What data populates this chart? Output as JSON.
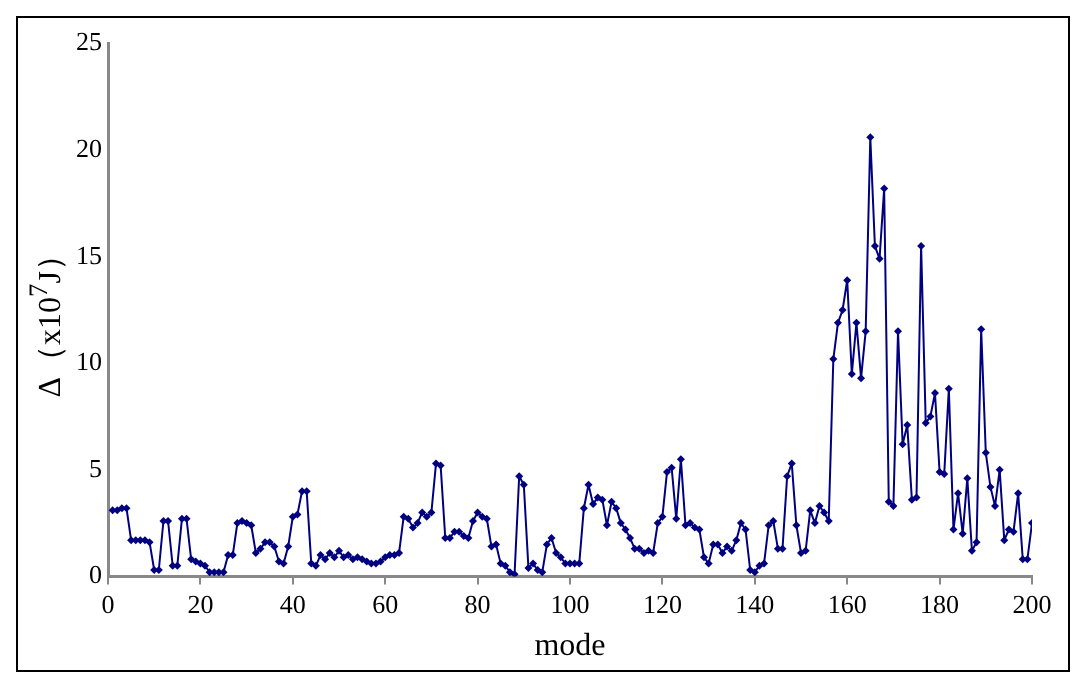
{
  "chart_data": {
    "type": "line",
    "xlabel": "mode",
    "ylabel": "Δ（x10$^{7}$J）",
    "xlim": [
      0,
      200
    ],
    "xticks": [
      0,
      20,
      40,
      60,
      80,
      100,
      120,
      140,
      160,
      180,
      200
    ],
    "ylim": [
      0,
      25
    ],
    "yticks": [
      0,
      5,
      10,
      15,
      20,
      25
    ],
    "grid": false,
    "legend": false,
    "marker": "diamond",
    "line_style": "solid",
    "x": [
      1,
      2,
      3,
      4,
      5,
      6,
      7,
      8,
      9,
      10,
      11,
      12,
      13,
      14,
      15,
      16,
      17,
      18,
      19,
      20,
      21,
      22,
      23,
      24,
      25,
      26,
      27,
      28,
      29,
      30,
      31,
      32,
      33,
      34,
      35,
      36,
      37,
      38,
      39,
      40,
      41,
      42,
      43,
      44,
      45,
      46,
      47,
      48,
      49,
      50,
      51,
      52,
      53,
      54,
      55,
      56,
      57,
      58,
      59,
      60,
      61,
      62,
      63,
      64,
      65,
      66,
      67,
      68,
      69,
      70,
      71,
      72,
      73,
      74,
      75,
      76,
      77,
      78,
      79,
      80,
      81,
      82,
      83,
      84,
      85,
      86,
      87,
      88,
      89,
      90,
      91,
      92,
      93,
      94,
      95,
      96,
      97,
      98,
      99,
      100,
      101,
      102,
      103,
      104,
      105,
      106,
      107,
      108,
      109,
      110,
      111,
      112,
      113,
      114,
      115,
      116,
      117,
      118,
      119,
      120,
      121,
      122,
      123,
      124,
      125,
      126,
      127,
      128,
      129,
      130,
      131,
      132,
      133,
      134,
      135,
      136,
      137,
      138,
      139,
      140,
      141,
      142,
      143,
      144,
      145,
      146,
      147,
      148,
      149,
      150,
      151,
      152,
      153,
      154,
      155,
      156,
      157,
      158,
      159,
      160,
      161,
      162,
      163,
      164,
      165,
      166,
      167,
      168,
      169,
      170,
      171,
      172,
      173,
      174,
      175,
      176,
      177,
      178,
      179,
      180,
      181,
      182,
      183,
      184,
      185,
      186,
      187,
      188,
      189,
      190,
      191,
      192,
      193,
      194,
      195,
      196,
      197,
      198,
      199,
      200
    ],
    "series": [
      {
        "color": "#000080",
        "values": [
          3.1,
          3.1,
          3.2,
          3.2,
          1.7,
          1.7,
          1.7,
          1.7,
          1.6,
          0.3,
          0.3,
          2.6,
          2.6,
          0.5,
          0.5,
          2.7,
          2.7,
          0.8,
          0.7,
          0.6,
          0.5,
          0.2,
          0.2,
          0.2,
          0.2,
          1.0,
          1.0,
          2.5,
          2.6,
          2.5,
          2.4,
          1.1,
          1.3,
          1.6,
          1.6,
          1.4,
          0.7,
          0.6,
          1.4,
          2.8,
          2.9,
          4.0,
          4.0,
          0.6,
          0.5,
          1.0,
          0.8,
          1.1,
          0.9,
          1.2,
          0.9,
          1.0,
          0.8,
          0.9,
          0.8,
          0.7,
          0.6,
          0.6,
          0.7,
          0.9,
          1.0,
          1.0,
          1.1,
          2.8,
          2.7,
          2.3,
          2.5,
          3.0,
          2.8,
          3.0,
          5.3,
          5.2,
          1.8,
          1.8,
          2.1,
          2.1,
          1.9,
          1.8,
          2.6,
          3.0,
          2.8,
          2.7,
          1.4,
          1.5,
          0.6,
          0.5,
          0.2,
          0.1,
          4.7,
          4.3,
          0.4,
          0.6,
          0.3,
          0.2,
          1.5,
          1.8,
          1.1,
          0.9,
          0.6,
          0.6,
          0.6,
          0.6,
          3.2,
          4.3,
          3.4,
          3.7,
          3.6,
          2.4,
          3.5,
          3.2,
          2.5,
          2.2,
          1.8,
          1.3,
          1.3,
          1.1,
          1.2,
          1.1,
          2.5,
          2.8,
          4.9,
          5.1,
          2.7,
          5.5,
          2.4,
          2.5,
          2.3,
          2.2,
          0.9,
          0.6,
          1.5,
          1.5,
          1.1,
          1.4,
          1.2,
          1.7,
          2.5,
          2.2,
          0.3,
          0.2,
          0.5,
          0.6,
          2.4,
          2.6,
          1.3,
          1.3,
          4.7,
          5.3,
          2.4,
          1.1,
          1.2,
          3.1,
          2.5,
          3.3,
          3.0,
          2.6,
          10.2,
          11.9,
          12.5,
          13.9,
          9.5,
          11.9,
          9.3,
          11.5,
          20.6,
          15.5,
          14.9,
          18.2,
          3.5,
          3.3,
          11.5,
          6.2,
          7.1,
          3.6,
          3.7,
          15.5,
          7.2,
          7.5,
          8.6,
          4.9,
          4.8,
          8.8,
          2.2,
          3.9,
          2.0,
          4.6,
          1.2,
          1.6,
          11.6,
          5.8,
          4.2,
          3.3,
          5.0,
          1.7,
          2.2,
          2.1,
          3.9,
          0.8,
          0.8,
          2.5
        ]
      }
    ]
  }
}
